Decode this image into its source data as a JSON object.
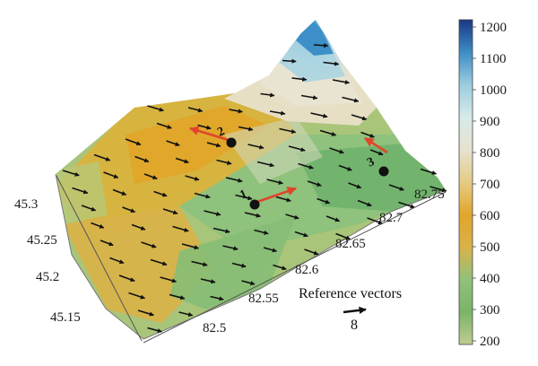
{
  "chart_data": {
    "type": "3d-surface-vector-field",
    "title": "",
    "x_axis": {
      "ticks": [
        "82.5",
        "82.55",
        "82.6",
        "82.65",
        "82.7",
        "82.75"
      ]
    },
    "y_axis": {
      "ticks": [
        "45.15",
        "45.2",
        "45.25",
        "45.3"
      ]
    },
    "colorbar": {
      "ticks": [
        "200",
        "300",
        "400",
        "500",
        "600",
        "700",
        "800",
        "900",
        "1000",
        "1100",
        "1200"
      ],
      "range": [
        200,
        1200
      ],
      "colors": [
        "#b9c98c",
        "#6fae63",
        "#8fbf73",
        "#d8b04a",
        "#e0a72b",
        "#e3cf8a",
        "#e6e2cd",
        "#d7ecec",
        "#9fcce0",
        "#3f8fc6",
        "#1c3a86"
      ]
    },
    "stations": [
      {
        "label": "1",
        "lon": 82.58,
        "lat": 45.24,
        "wind_direction": "east-northeast"
      },
      {
        "label": "2",
        "lon": 82.46,
        "lat": 45.27,
        "wind_direction": "west-northwest"
      },
      {
        "label": "3",
        "lon": 82.74,
        "lat": 45.24,
        "wind_direction": "northwest"
      }
    ],
    "reference_vector": {
      "label": "Reference vectors",
      "value": "8"
    },
    "field_vectors": {
      "prevailing_direction": "east-southeast"
    }
  }
}
